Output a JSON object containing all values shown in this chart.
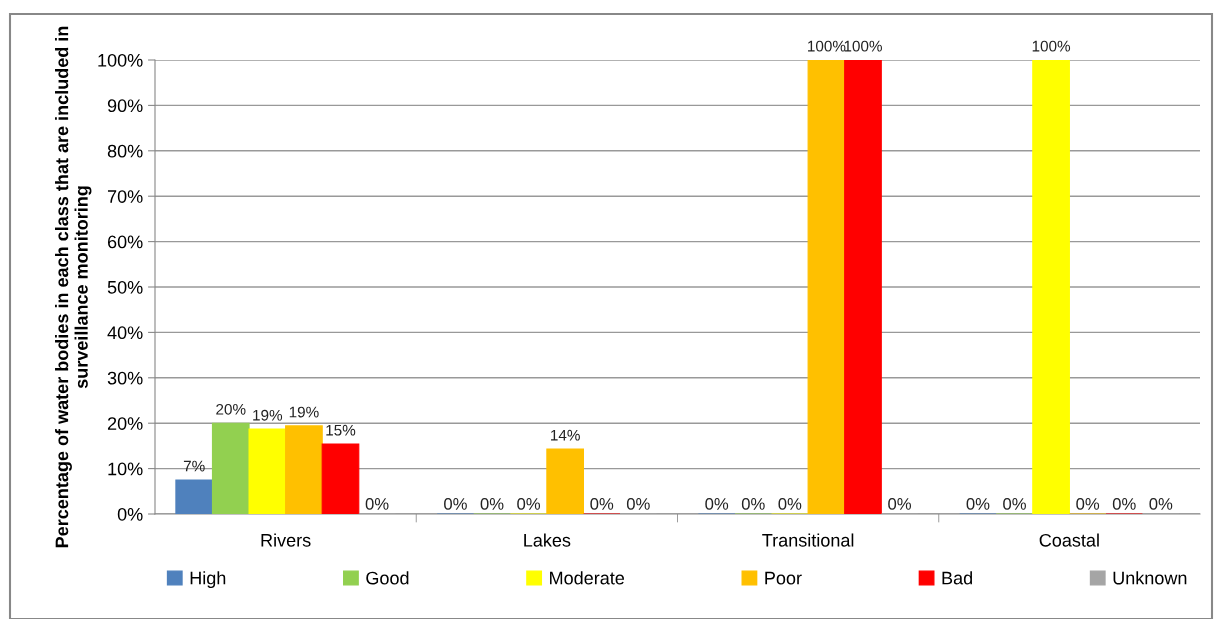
{
  "chart_data": {
    "type": "bar",
    "ylabel": "Percentage of water bodies in each class that are included in surveillance monitoring",
    "categories": [
      "Rivers",
      "Lakes",
      "Transitional",
      "Coastal"
    ],
    "series": [
      {
        "name": "High",
        "color": "#4f81bd",
        "values": [
          7.5,
          0,
          0,
          0
        ],
        "value_labels": [
          "7%",
          "0%",
          "0%",
          "0%"
        ]
      },
      {
        "name": "Good",
        "color": "#92d050",
        "values": [
          20,
          0,
          0,
          0
        ],
        "value_labels": [
          "20%",
          "0%",
          "0%",
          "0%"
        ]
      },
      {
        "name": "Moderate",
        "color": "#ffff00",
        "values": [
          18.7,
          0,
          0,
          100
        ],
        "value_labels": [
          "19%",
          "0%",
          "0%",
          "100%"
        ]
      },
      {
        "name": "Poor",
        "color": "#ffc000",
        "values": [
          19.4,
          14.3,
          100,
          0
        ],
        "value_labels": [
          "19%",
          "14%",
          "100%",
          "0%"
        ]
      },
      {
        "name": "Bad",
        "color": "#ff0000",
        "values": [
          15.4,
          0,
          100,
          0
        ],
        "value_labels": [
          "15%",
          "0%",
          "100%",
          "0%"
        ]
      },
      {
        "name": "Unknown",
        "color": "#a5a5a5",
        "values": [
          0,
          0,
          0,
          0
        ],
        "value_labels": [
          "0%",
          "0%",
          "0%",
          "0%"
        ]
      }
    ],
    "ylim": [
      0,
      100
    ],
    "yticks": [
      {
        "value": 0,
        "label": "0%"
      },
      {
        "value": 10,
        "label": "10%"
      },
      {
        "value": 20,
        "label": "20%"
      },
      {
        "value": 30,
        "label": "30%"
      },
      {
        "value": 40,
        "label": "40%"
      },
      {
        "value": 50,
        "label": "50%"
      },
      {
        "value": 60,
        "label": "60%"
      },
      {
        "value": 70,
        "label": "70%"
      },
      {
        "value": 80,
        "label": "80%"
      },
      {
        "value": 90,
        "label": "90%"
      },
      {
        "value": 100,
        "label": "100%"
      }
    ],
    "grid": "y",
    "legend": "bottom"
  }
}
